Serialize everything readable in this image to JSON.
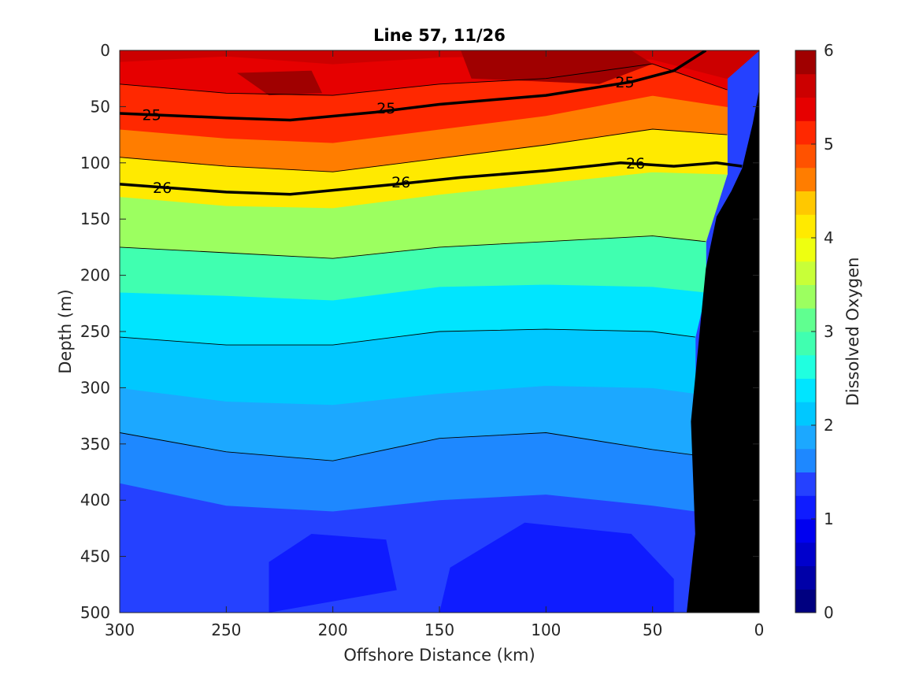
{
  "chart_data": {
    "type": "filled-contour",
    "title": "Line 57, 11/26",
    "xlabel": "Offshore Distance (km)",
    "ylabel": "Depth (m)",
    "xlim": [
      300,
      0
    ],
    "ylim": [
      500,
      0
    ],
    "x_reversed": true,
    "y_reversed": true,
    "xticks": [
      "300",
      "250",
      "200",
      "150",
      "100",
      "50",
      "0"
    ],
    "xtick_values": [
      300,
      250,
      200,
      150,
      100,
      50,
      0
    ],
    "yticks": [
      "0",
      "50",
      "100",
      "150",
      "200",
      "250",
      "300",
      "350",
      "400",
      "450",
      "500"
    ],
    "ytick_values": [
      0,
      50,
      100,
      150,
      200,
      250,
      300,
      350,
      400,
      450,
      500
    ],
    "colorbar": {
      "label": "Dissolved Oxygen",
      "range": [
        0,
        6
      ],
      "ticks": [
        "0",
        "1",
        "2",
        "3",
        "4",
        "5",
        "6"
      ],
      "tick_values": [
        0,
        1,
        2,
        3,
        4,
        5,
        6
      ],
      "level_step": 0.25,
      "colormap": [
        "#000080",
        "#0000a8",
        "#0000cc",
        "#0000f0",
        "#0f1cff",
        "#2541ff",
        "#2e65ff",
        "#1e88ff",
        "#1ca8ff",
        "#00c8ff",
        "#00e5ff",
        "#20ffe0",
        "#40ffb0",
        "#60ff90",
        "#9cff60",
        "#c8ff38",
        "#eeff10",
        "#ffea00",
        "#ffc800",
        "#ffa200",
        "#ff7d00",
        "#ff5200",
        "#ff2800",
        "#e60000",
        "#cc0000",
        "#a00000"
      ]
    },
    "isopleths_sigma_theta": [
      {
        "label": "25",
        "emphasized": true,
        "points": [
          [
            300,
            56
          ],
          [
            250,
            60
          ],
          [
            220,
            62
          ],
          [
            180,
            55
          ],
          [
            150,
            48
          ],
          [
            100,
            40
          ],
          [
            60,
            28
          ],
          [
            40,
            18
          ],
          [
            25,
            0
          ]
        ]
      },
      {
        "label": "26",
        "emphasized": true,
        "points": [
          [
            300,
            119
          ],
          [
            250,
            126
          ],
          [
            220,
            128
          ],
          [
            170,
            119
          ],
          [
            140,
            113
          ],
          [
            100,
            107
          ],
          [
            65,
            100
          ],
          [
            40,
            103
          ],
          [
            20,
            100
          ],
          [
            8,
            103
          ]
        ]
      }
    ],
    "contour_labels": [
      {
        "text": "25",
        "x": 285,
        "depth": 57
      },
      {
        "text": "25",
        "x": 175,
        "depth": 51
      },
      {
        "text": "25",
        "x": 63,
        "depth": 28
      },
      {
        "text": "26",
        "x": 280,
        "depth": 122
      },
      {
        "text": "26",
        "x": 168,
        "depth": 117
      },
      {
        "text": "26",
        "x": 58,
        "depth": 100
      }
    ],
    "bottom_topography": [
      [
        34,
        500
      ],
      [
        30,
        430
      ],
      [
        32,
        330
      ],
      [
        25,
        194
      ],
      [
        20,
        148
      ],
      [
        13,
        125
      ],
      [
        8,
        105
      ],
      [
        3,
        65
      ],
      [
        0,
        35
      ],
      [
        0,
        500
      ]
    ],
    "oxygen_surfaces": [
      {
        "depth_at_x": [
          [
            300,
            10
          ],
          [
            250,
            5
          ],
          [
            200,
            12
          ],
          [
            150,
            6
          ],
          [
            100,
            4
          ],
          [
            50,
            8
          ],
          [
            15,
            25
          ]
        ]
      },
      {
        "depth_at_x": [
          [
            300,
            30
          ],
          [
            250,
            38
          ],
          [
            200,
            40
          ],
          [
            150,
            30
          ],
          [
            100,
            25
          ],
          [
            50,
            12
          ],
          [
            15,
            35
          ]
        ]
      },
      {
        "depth_at_x": [
          [
            300,
            70
          ],
          [
            250,
            78
          ],
          [
            200,
            82
          ],
          [
            150,
            70
          ],
          [
            100,
            58
          ],
          [
            50,
            40
          ],
          [
            15,
            50
          ]
        ]
      },
      {
        "depth_at_x": [
          [
            300,
            95
          ],
          [
            250,
            103
          ],
          [
            200,
            108
          ],
          [
            150,
            96
          ],
          [
            100,
            84
          ],
          [
            50,
            70
          ],
          [
            15,
            75
          ]
        ]
      },
      {
        "depth_at_x": [
          [
            300,
            130
          ],
          [
            250,
            138
          ],
          [
            200,
            140
          ],
          [
            150,
            128
          ],
          [
            100,
            118
          ],
          [
            50,
            108
          ],
          [
            15,
            110
          ]
        ]
      },
      {
        "depth_at_x": [
          [
            300,
            175
          ],
          [
            250,
            180
          ],
          [
            200,
            185
          ],
          [
            150,
            175
          ],
          [
            100,
            170
          ],
          [
            50,
            165
          ],
          [
            25,
            170
          ]
        ]
      },
      {
        "depth_at_x": [
          [
            300,
            215
          ],
          [
            250,
            218
          ],
          [
            200,
            222
          ],
          [
            150,
            210
          ],
          [
            100,
            208
          ],
          [
            50,
            210
          ],
          [
            25,
            215
          ]
        ]
      },
      {
        "depth_at_x": [
          [
            300,
            255
          ],
          [
            250,
            262
          ],
          [
            200,
            262
          ],
          [
            150,
            250
          ],
          [
            100,
            248
          ],
          [
            50,
            250
          ],
          [
            30,
            255
          ]
        ]
      },
      {
        "depth_at_x": [
          [
            300,
            300
          ],
          [
            250,
            312
          ],
          [
            200,
            315
          ],
          [
            150,
            305
          ],
          [
            100,
            298
          ],
          [
            50,
            300
          ],
          [
            30,
            305
          ]
        ]
      },
      {
        "depth_at_x": [
          [
            300,
            340
          ],
          [
            250,
            357
          ],
          [
            200,
            365
          ],
          [
            150,
            345
          ],
          [
            100,
            340
          ],
          [
            50,
            355
          ],
          [
            30,
            360
          ]
        ]
      },
      {
        "depth_at_x": [
          [
            300,
            385
          ],
          [
            250,
            405
          ],
          [
            200,
            410
          ],
          [
            150,
            400
          ],
          [
            100,
            395
          ],
          [
            50,
            405
          ],
          [
            30,
            410
          ]
        ]
      }
    ],
    "grid": false,
    "colorbar_position": "right"
  }
}
